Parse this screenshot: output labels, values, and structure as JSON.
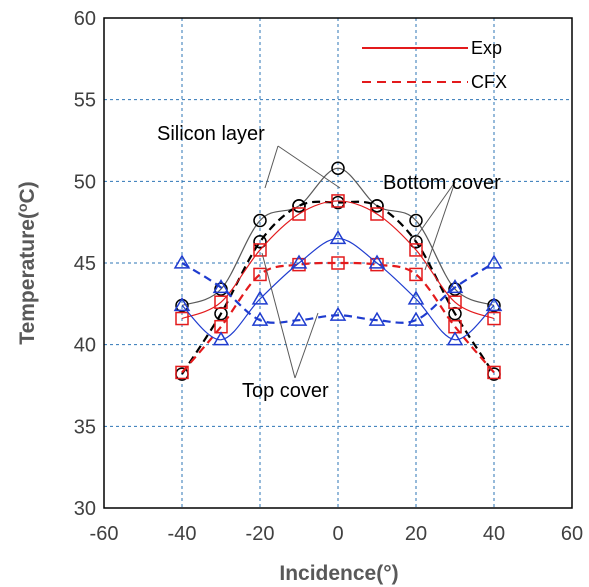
{
  "chart_data": {
    "type": "line",
    "xlabel": "Incidence(°)",
    "ylabel": "Temperature(oC)",
    "xlim": [
      -60,
      60
    ],
    "ylim": [
      30,
      60
    ],
    "xticks": [
      -60,
      -40,
      -20,
      0,
      20,
      40,
      60
    ],
    "yticks": [
      30,
      35,
      40,
      45,
      50,
      55,
      60
    ],
    "grid": true,
    "legend": {
      "position": "top-right",
      "entries": [
        {
          "label": "Exp",
          "style": "solid",
          "color": "#e31a1c"
        },
        {
          "label": "CFX",
          "style": "dashed",
          "color": "#e31a1c"
        }
      ]
    },
    "annotations": [
      {
        "text": "Silicon layer"
      },
      {
        "text": "Bottom cover"
      },
      {
        "text": "Top cover"
      }
    ],
    "series": [
      {
        "layer": "silicon",
        "kind": "exp",
        "color": "#595959",
        "marker": "circle",
        "x": [
          -40,
          -30,
          -20,
          -10,
          0,
          10,
          20,
          30,
          40
        ],
        "y": [
          42.4,
          43.4,
          47.6,
          48.5,
          50.8,
          48.5,
          47.6,
          43.4,
          42.4
        ]
      },
      {
        "layer": "silicon",
        "kind": "cfx",
        "color": "#000000",
        "marker": "circle",
        "x": [
          -40,
          -30,
          -20,
          -10,
          0,
          10,
          20,
          30,
          40
        ],
        "y": [
          38.2,
          41.9,
          46.3,
          48.5,
          48.7,
          48.5,
          46.3,
          41.9,
          38.2
        ]
      },
      {
        "layer": "bottom",
        "kind": "exp",
        "color": "#e31a1c",
        "marker": "square",
        "x": [
          -40,
          -30,
          -20,
          -10,
          0,
          10,
          20,
          30,
          40
        ],
        "y": [
          41.6,
          42.6,
          45.8,
          48.0,
          48.8,
          48.0,
          45.8,
          42.6,
          41.6
        ]
      },
      {
        "layer": "bottom",
        "kind": "cfx",
        "color": "#e31a1c",
        "marker": "square",
        "x": [
          -40,
          -30,
          -20,
          -10,
          0,
          10,
          20,
          30,
          40
        ],
        "y": [
          38.3,
          41.1,
          44.3,
          44.9,
          45.0,
          44.9,
          44.3,
          41.1,
          38.3
        ]
      },
      {
        "layer": "top",
        "kind": "exp",
        "color": "#1f3ccf",
        "marker": "triangle",
        "x": [
          -40,
          -30,
          -20,
          -10,
          0,
          10,
          20,
          30,
          40
        ],
        "y": [
          42.4,
          40.3,
          42.8,
          45.0,
          46.5,
          45.0,
          42.8,
          40.3,
          42.4
        ]
      },
      {
        "layer": "top",
        "kind": "cfx",
        "color": "#1f3ccf",
        "marker": "triangle",
        "x": [
          -40,
          -30,
          -20,
          -10,
          0,
          10,
          20,
          30,
          40
        ],
        "y": [
          45.0,
          43.5,
          41.5,
          41.5,
          41.8,
          41.5,
          41.5,
          43.5,
          45.0
        ]
      }
    ]
  }
}
